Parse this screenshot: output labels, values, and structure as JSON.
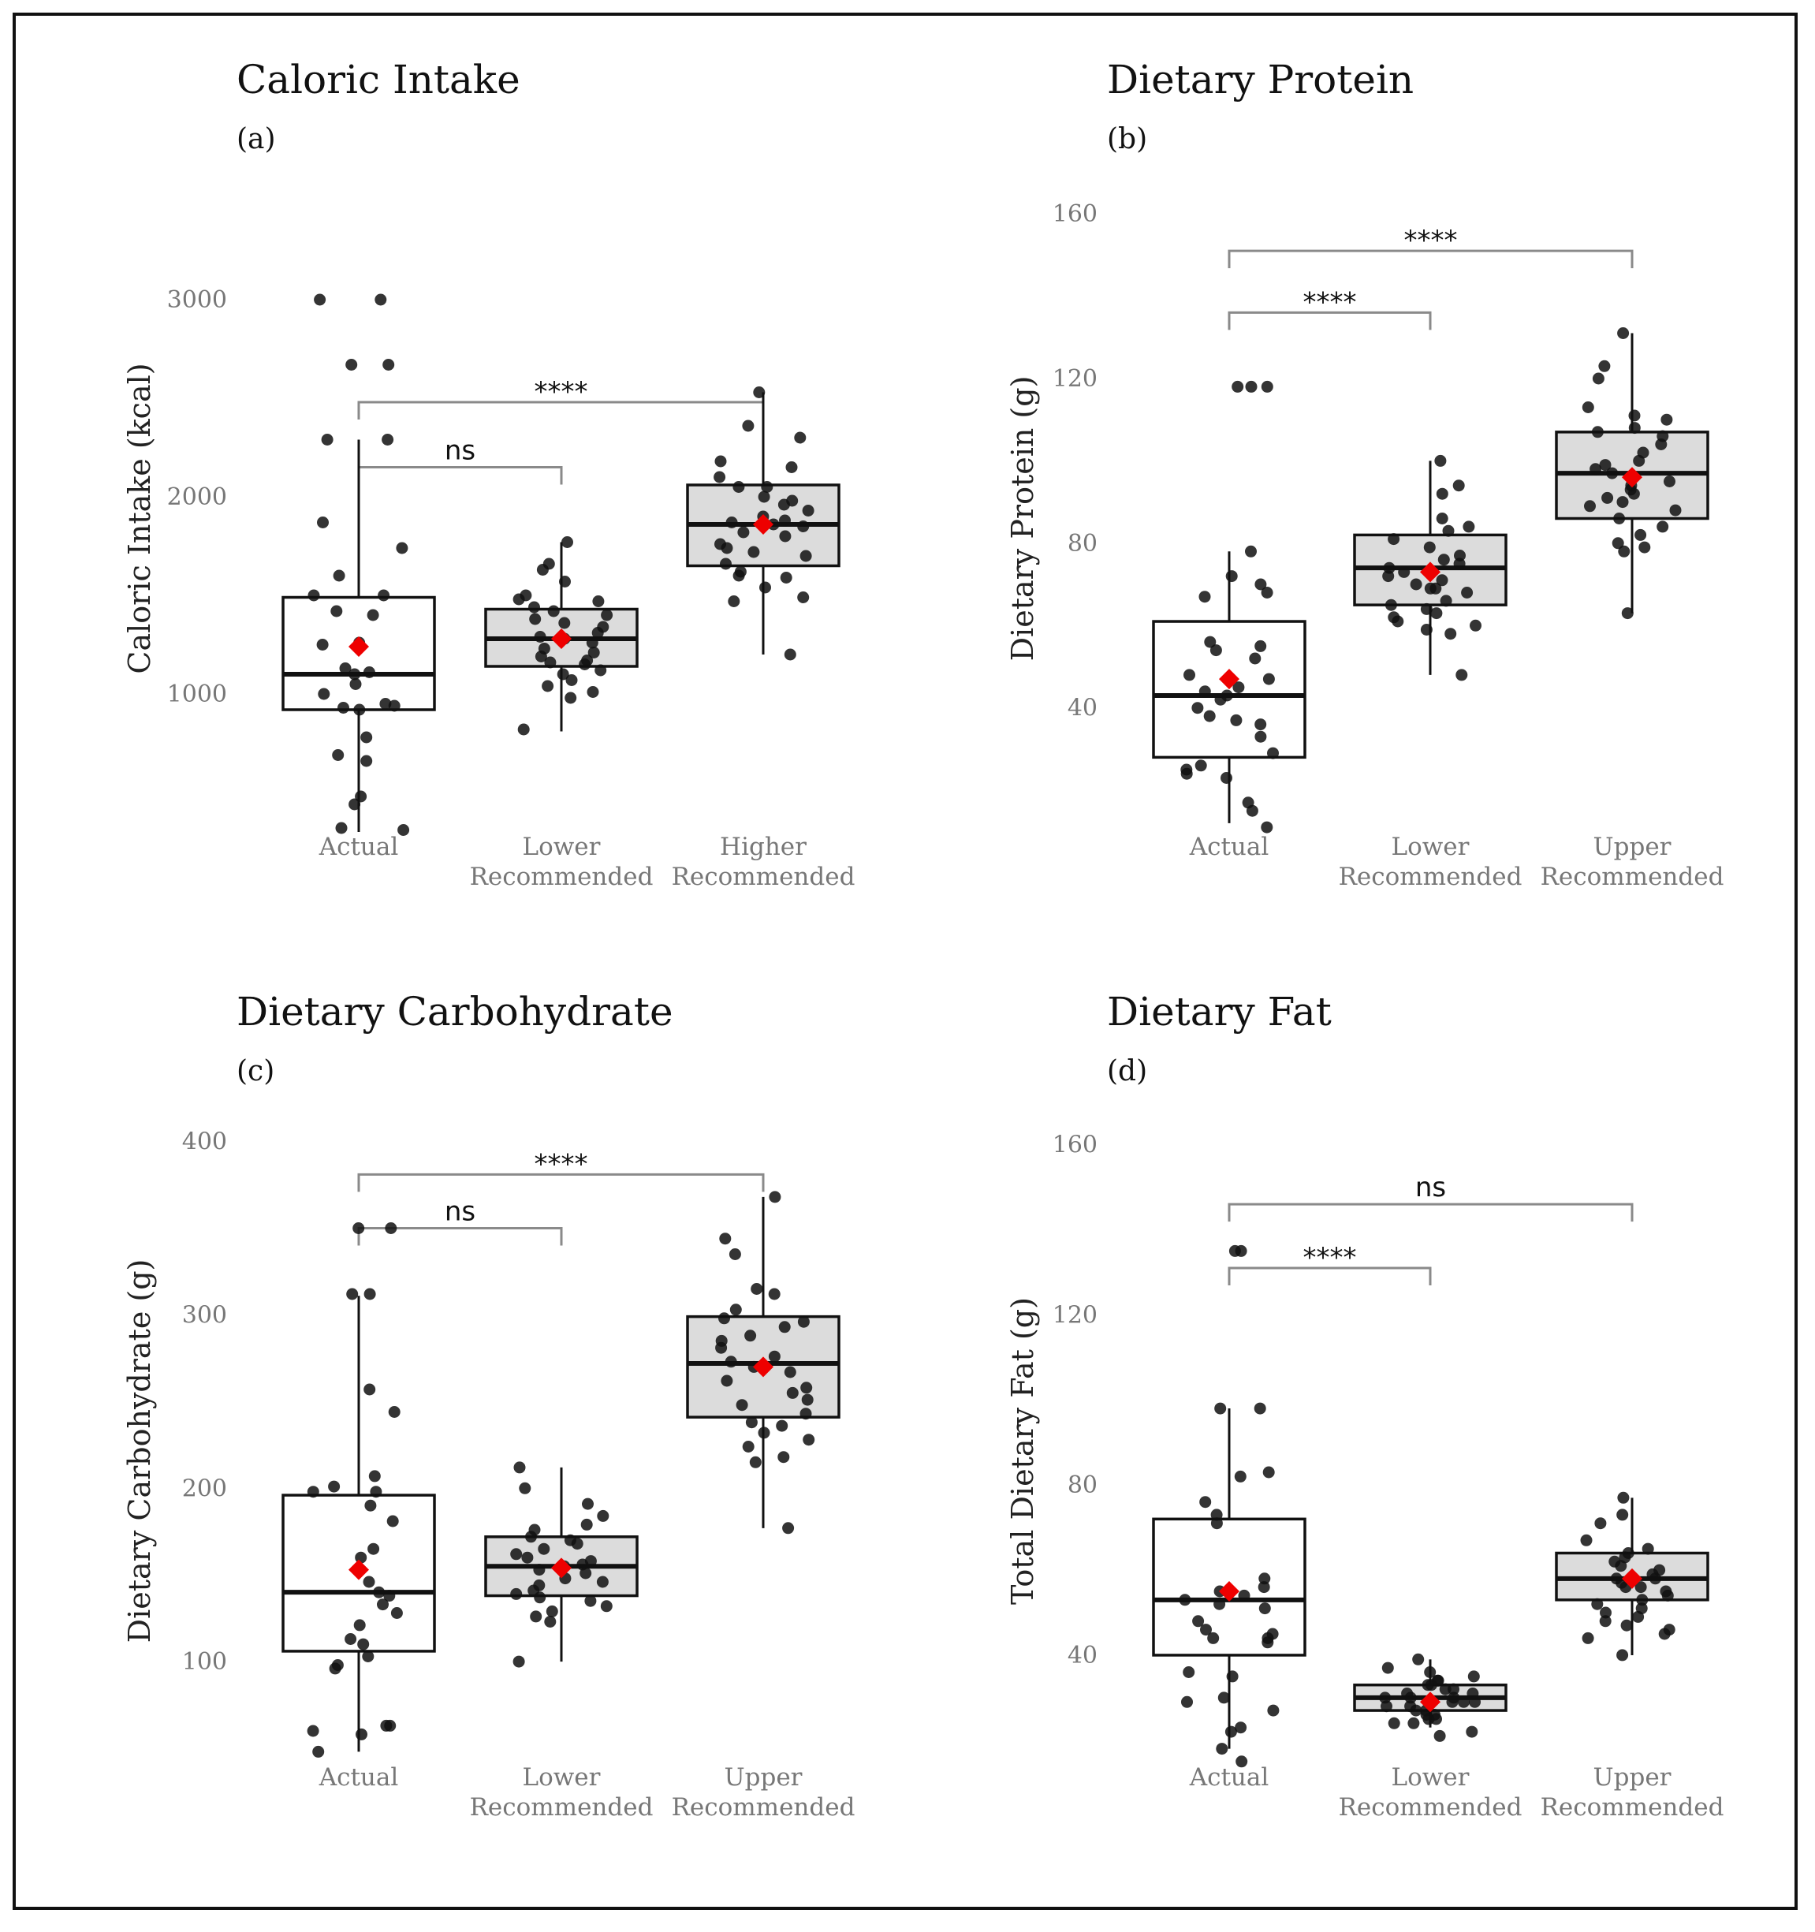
{
  "colors": {
    "box_fill_actual": "#ffffff",
    "box_fill_recommended": "#dcdcdc",
    "mean_marker": "#ee0000",
    "points": "#111111",
    "bracket": "#8a8a8a"
  },
  "chart_data": [
    {
      "type": "box",
      "title": "Caloric Intake",
      "panel": "(a)",
      "ylabel": "Caloric Intake (kcal)",
      "xlabel": "",
      "ylim": [
        240,
        3540
      ],
      "yticks": [
        1000,
        2000,
        3000
      ],
      "categories": [
        {
          "line1": "Actual",
          "line2": ""
        },
        {
          "line1": "Lower",
          "line2": "Recommended"
        },
        {
          "line1": "Higher",
          "line2": "Recommended"
        }
      ],
      "boxes": [
        {
          "q1": 920,
          "median": 1100,
          "q3": 1490,
          "lo": 300,
          "hi": 2290,
          "mean": 1240,
          "fill": "white"
        },
        {
          "q1": 1140,
          "median": 1280,
          "q3": 1430,
          "lo": 810,
          "hi": 1770,
          "mean": 1280,
          "fill": "grey"
        },
        {
          "q1": 1650,
          "median": 1860,
          "q3": 2060,
          "lo": 1200,
          "hi": 2530,
          "mean": 1860,
          "fill": "grey"
        }
      ],
      "points": [
        [
          3000,
          3000,
          2670,
          2670,
          2290,
          2290,
          1870,
          1740,
          1600,
          1500,
          1500,
          1420,
          1400,
          1260,
          1250,
          1130,
          1110,
          1100,
          1050,
          1000,
          950,
          940,
          930,
          920,
          780,
          690,
          660,
          480,
          440,
          320,
          310
        ],
        [
          1770,
          1660,
          1630,
          1570,
          1500,
          1480,
          1470,
          1440,
          1420,
          1400,
          1380,
          1360,
          1340,
          1310,
          1290,
          1280,
          1260,
          1230,
          1210,
          1190,
          1170,
          1160,
          1150,
          1120,
          1100,
          1070,
          1040,
          1010,
          980,
          820
        ],
        [
          2530,
          2360,
          2300,
          2180,
          2150,
          2100,
          2050,
          2050,
          2000,
          1980,
          1960,
          1930,
          1900,
          1880,
          1870,
          1860,
          1850,
          1820,
          1800,
          1760,
          1740,
          1720,
          1700,
          1660,
          1620,
          1600,
          1590,
          1540,
          1490,
          1470,
          1200
        ]
      ],
      "brackets": [
        {
          "from": 0,
          "to": 2,
          "y": 2480,
          "label": "****"
        },
        {
          "from": 0,
          "to": 1,
          "y": 2150,
          "label": "ns"
        }
      ]
    },
    {
      "type": "box",
      "title": "Dietary Protein",
      "panel": "(b)",
      "ylabel": "Dietary Protein (g)",
      "xlabel": "",
      "ylim": [
        7,
        165
      ],
      "yticks": [
        40,
        80,
        120,
        160
      ],
      "categories": [
        {
          "line1": "Actual",
          "line2": ""
        },
        {
          "line1": "Lower",
          "line2": "Recommended"
        },
        {
          "line1": "Upper",
          "line2": "Recommended"
        }
      ],
      "boxes": [
        {
          "q1": 28,
          "median": 43,
          "q3": 61,
          "lo": 12,
          "hi": 78,
          "mean": 47,
          "fill": "white"
        },
        {
          "q1": 65,
          "median": 74,
          "q3": 82,
          "lo": 48,
          "hi": 100,
          "mean": 73,
          "fill": "grey"
        },
        {
          "q1": 86,
          "median": 97,
          "q3": 107,
          "lo": 63,
          "hi": 131,
          "mean": 96,
          "fill": "grey"
        }
      ],
      "points": [
        [
          118,
          118,
          118,
          78,
          72,
          70,
          68,
          67,
          56,
          55,
          54,
          52,
          48,
          47,
          45,
          44,
          43,
          42,
          40,
          38,
          37,
          36,
          33,
          29,
          26,
          25,
          24,
          23,
          17,
          15,
          11
        ],
        [
          100,
          94,
          92,
          86,
          84,
          83,
          81,
          79,
          77,
          76,
          75,
          74,
          73,
          72,
          71,
          70,
          69,
          69,
          68,
          66,
          65,
          64,
          63,
          62,
          61,
          60,
          59,
          58,
          48
        ],
        [
          131,
          123,
          120,
          113,
          111,
          110,
          108,
          107,
          106,
          104,
          102,
          100,
          99,
          98,
          97,
          95,
          94,
          93,
          92,
          91,
          90,
          89,
          88,
          86,
          84,
          82,
          80,
          79,
          78,
          63
        ]
      ],
      "brackets": [
        {
          "from": 0,
          "to": 2,
          "y": 151,
          "label": "****"
        },
        {
          "from": 0,
          "to": 1,
          "y": 136,
          "label": "****"
        }
      ]
    },
    {
      "type": "box",
      "title": "Dietary Carbohydrate",
      "panel": "(c)",
      "ylabel": "Dietary Carbohydrate (g)",
      "xlabel": "",
      "ylim": [
        35,
        408
      ],
      "yticks": [
        100,
        200,
        300,
        400
      ],
      "categories": [
        {
          "line1": "Actual",
          "line2": ""
        },
        {
          "line1": "Lower",
          "line2": "Recommended"
        },
        {
          "line1": "Upper",
          "line2": "Recommended"
        }
      ],
      "boxes": [
        {
          "q1": 106,
          "median": 140,
          "q3": 196,
          "lo": 48,
          "hi": 311,
          "mean": 153,
          "fill": "white"
        },
        {
          "q1": 138,
          "median": 155,
          "q3": 172,
          "lo": 100,
          "hi": 212,
          "mean": 154,
          "fill": "grey"
        },
        {
          "q1": 241,
          "median": 272,
          "q3": 299,
          "lo": 177,
          "hi": 368,
          "mean": 270,
          "fill": "grey"
        }
      ],
      "points": [
        [
          350,
          350,
          312,
          312,
          257,
          244,
          207,
          201,
          198,
          198,
          190,
          181,
          165,
          160,
          146,
          140,
          138,
          133,
          128,
          121,
          113,
          110,
          103,
          98,
          96,
          63,
          63,
          60,
          58,
          48
        ],
        [
          212,
          200,
          191,
          184,
          179,
          176,
          172,
          170,
          168,
          165,
          162,
          160,
          158,
          156,
          155,
          153,
          151,
          148,
          146,
          144,
          141,
          139,
          137,
          135,
          132,
          129,
          126,
          123,
          100
        ],
        [
          368,
          344,
          335,
          315,
          312,
          303,
          298,
          296,
          293,
          288,
          285,
          281,
          276,
          273,
          270,
          267,
          262,
          258,
          255,
          251,
          248,
          243,
          238,
          236,
          232,
          228,
          224,
          218,
          215,
          177
        ]
      ],
      "brackets": [
        {
          "from": 0,
          "to": 2,
          "y": 381,
          "label": "****"
        },
        {
          "from": 0,
          "to": 1,
          "y": 350,
          "label": "ns"
        }
      ]
    },
    {
      "type": "box",
      "title": "Dietary Fat",
      "panel": "(d)",
      "ylabel": "Total Dietary Fat (g)",
      "xlabel": "",
      "ylim": [
        12,
        164
      ],
      "yticks": [
        40,
        80,
        120,
        160
      ],
      "categories": [
        {
          "line1": "Actual",
          "line2": ""
        },
        {
          "line1": "Lower",
          "line2": "Recommended"
        },
        {
          "line1": "Upper",
          "line2": "Recommended"
        }
      ],
      "boxes": [
        {
          "q1": 40,
          "median": 53,
          "q3": 72,
          "lo": 18,
          "hi": 98,
          "mean": 55,
          "fill": "white"
        },
        {
          "q1": 27,
          "median": 30,
          "q3": 33,
          "lo": 23,
          "hi": 39,
          "mean": 29,
          "fill": "grey"
        },
        {
          "q1": 53,
          "median": 58,
          "q3": 64,
          "lo": 40,
          "hi": 77,
          "mean": 58,
          "fill": "grey"
        }
      ],
      "points": [
        [
          135,
          135,
          98,
          98,
          83,
          82,
          76,
          73,
          71,
          58,
          56,
          55,
          54,
          53,
          52,
          51,
          48,
          46,
          45,
          44,
          44,
          43,
          36,
          35,
          30,
          29,
          27,
          23,
          22,
          18,
          15
        ],
        [
          39,
          37,
          36,
          35,
          34,
          34,
          33,
          33,
          32,
          32,
          31,
          31,
          30,
          30,
          30,
          29,
          29,
          29,
          28,
          28,
          27,
          27,
          26,
          26,
          25,
          25,
          24,
          24,
          22,
          21
        ],
        [
          77,
          73,
          71,
          67,
          65,
          64,
          63,
          62,
          61,
          60,
          59,
          58,
          58,
          57,
          56,
          56,
          55,
          54,
          53,
          52,
          51,
          50,
          49,
          48,
          47,
          46,
          45,
          44,
          40
        ]
      ],
      "brackets": [
        {
          "from": 0,
          "to": 2,
          "y": 146,
          "label": "ns"
        },
        {
          "from": 0,
          "to": 1,
          "y": 131,
          "label": "****"
        }
      ]
    }
  ]
}
